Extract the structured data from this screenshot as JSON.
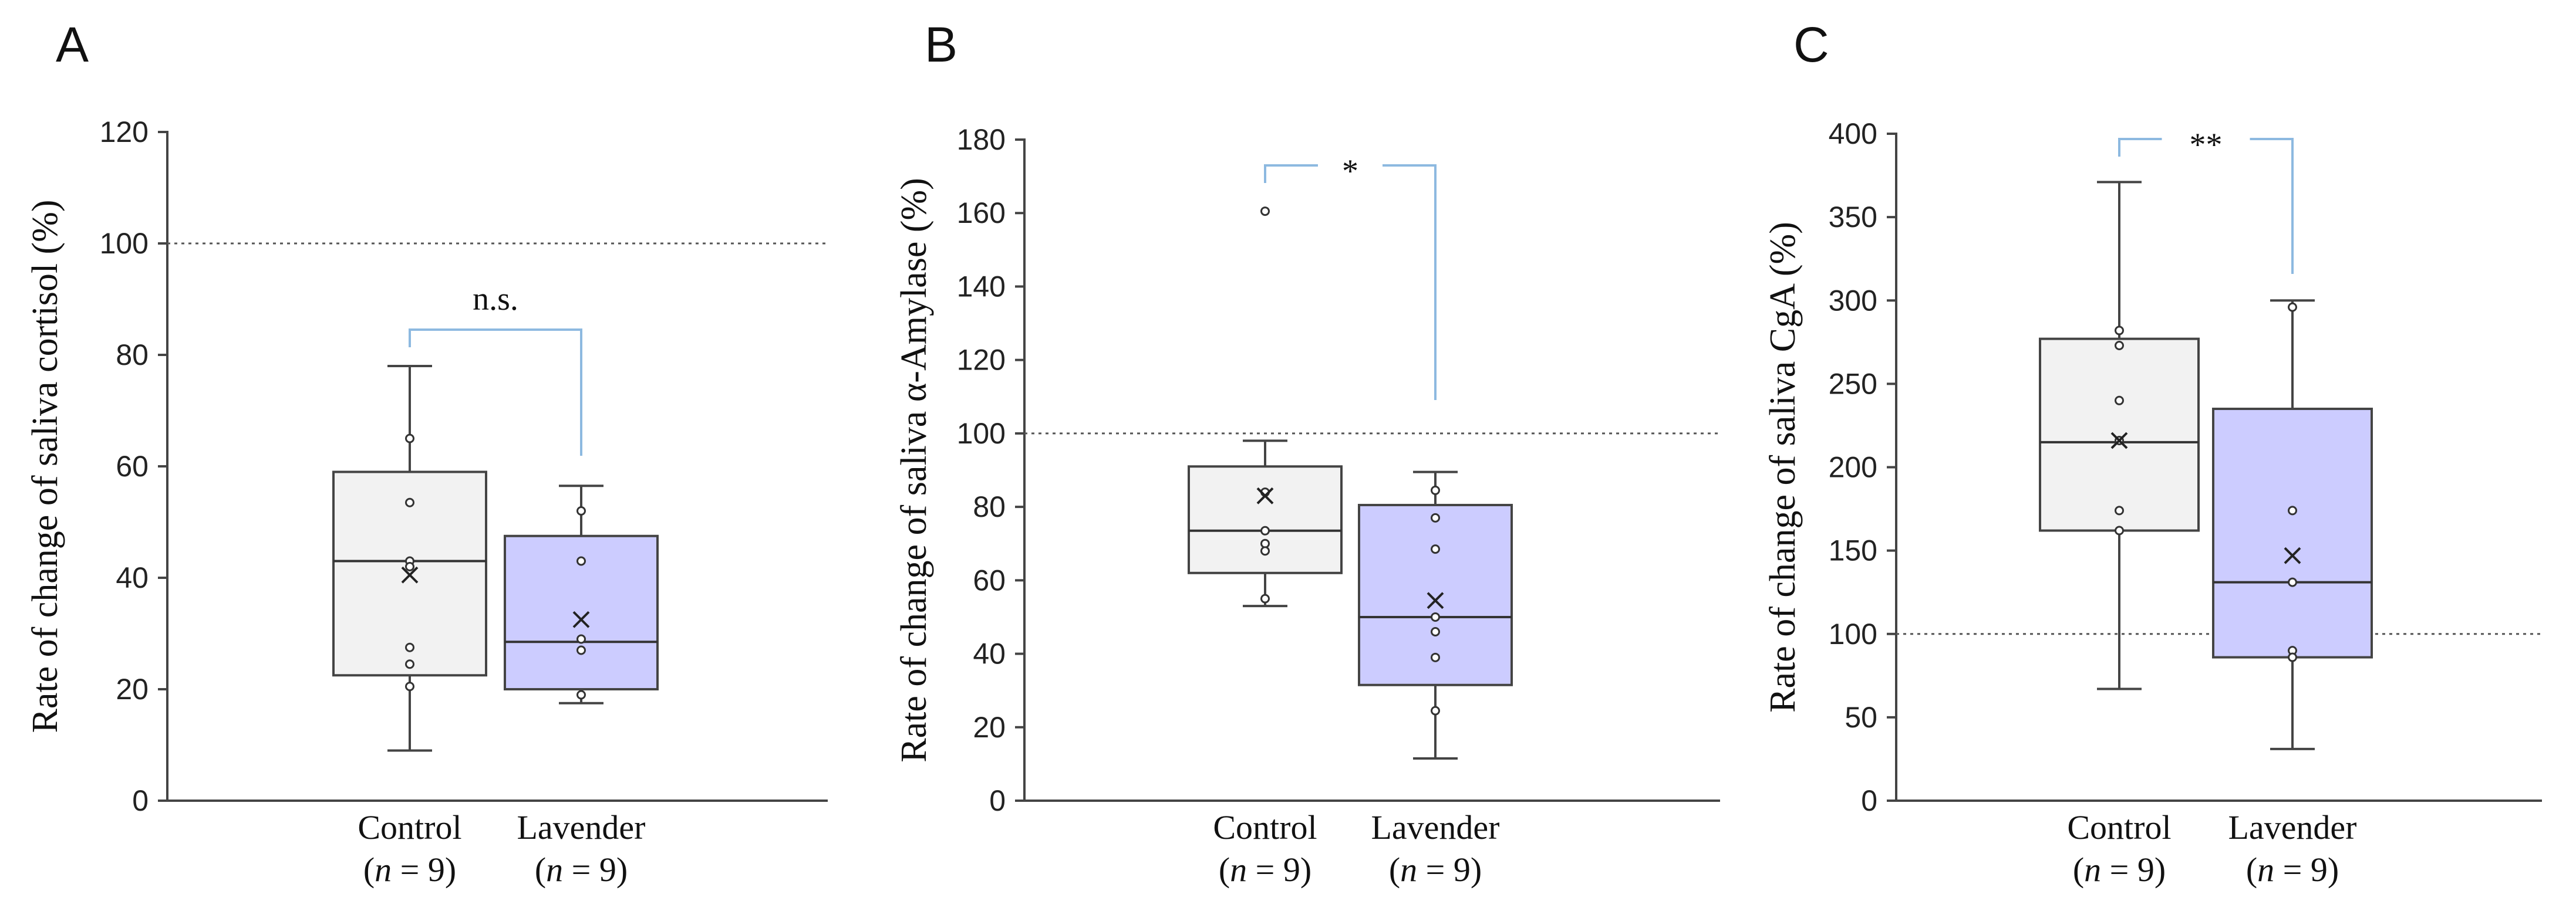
{
  "chart_data": [
    {
      "type": "box",
      "panel_label": "A",
      "ylabel": "Rate of change of saliva cortisol (%)",
      "ylim": [
        0,
        120
      ],
      "yticks": [
        0,
        20,
        40,
        60,
        80,
        100,
        120
      ],
      "reference_line": 100,
      "significance": "n.s.",
      "groups": [
        {
          "name": "Control",
          "n_label": "(n = 9)",
          "color": "#f2f2f2",
          "min": 9,
          "q1": 22.5,
          "median": 43,
          "q3": 59,
          "max": 78,
          "mean": 40.5,
          "points": [
            65,
            53.5,
            43,
            42,
            27.5,
            24.5,
            20.5
          ]
        },
        {
          "name": "Lavender",
          "n_label": "(n = 9)",
          "color": "#ccccff",
          "min": 17.5,
          "q1": 20,
          "median": 28.5,
          "q3": 47.5,
          "max": 56.5,
          "mean": 32.5,
          "points": [
            52,
            43,
            29,
            27,
            19
          ]
        }
      ]
    },
    {
      "type": "box",
      "panel_label": "B",
      "ylabel": "Rate of change of saliva α-Amylase (%)",
      "ylim": [
        0,
        180
      ],
      "yticks": [
        0,
        20,
        40,
        60,
        80,
        100,
        120,
        140,
        160,
        180
      ],
      "reference_line": 100,
      "significance": "*",
      "groups": [
        {
          "name": "Control",
          "n_label": "(n = 9)",
          "color": "#f2f2f2",
          "min": 53,
          "q1": 62,
          "median": 73.5,
          "q3": 91,
          "max": 98,
          "mean": 83,
          "points": [
            160.5,
            84,
            73.5,
            70,
            68,
            55
          ]
        },
        {
          "name": "Lavender",
          "n_label": "(n = 9)",
          "color": "#ccccff",
          "min": 11.5,
          "q1": 31.5,
          "median": 50,
          "q3": 80.5,
          "max": 89.5,
          "mean": 54.5,
          "points": [
            84.5,
            77,
            68.5,
            50,
            46,
            39,
            24.5
          ]
        }
      ]
    },
    {
      "type": "box",
      "panel_label": "C",
      "ylabel": "Rate of change of saliva CgA (%)",
      "ylim": [
        0,
        400
      ],
      "yticks": [
        0,
        50,
        100,
        150,
        200,
        250,
        300,
        350,
        400
      ],
      "reference_line": 100,
      "significance": "**",
      "groups": [
        {
          "name": "Control",
          "n_label": "(n = 9)",
          "color": "#f2f2f2",
          "min": 67,
          "q1": 162,
          "median": 215,
          "q3": 277,
          "max": 371,
          "mean": 216,
          "points": [
            282,
            273,
            240,
            216,
            174,
            162
          ]
        },
        {
          "name": "Lavender",
          "n_label": "(n = 9)",
          "color": "#ccccff",
          "min": 31,
          "q1": 86,
          "median": 131,
          "q3": 235,
          "max": 300,
          "mean": 147,
          "points": [
            296,
            174,
            131,
            90,
            86
          ]
        }
      ]
    }
  ]
}
